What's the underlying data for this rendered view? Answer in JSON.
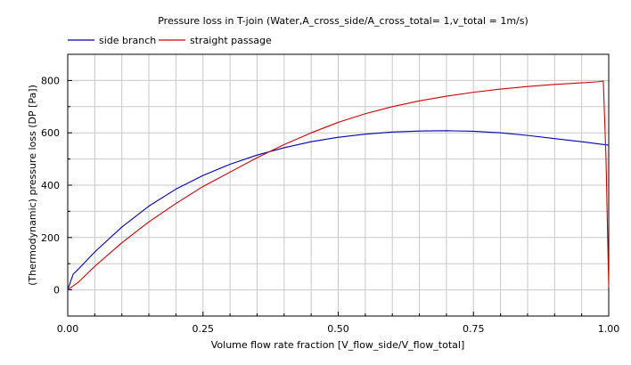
{
  "chart_data": {
    "type": "line",
    "title": "Pressure loss in T-join (Water,A_cross_side/A_cross_total= 1,v_total = 1m/s)",
    "xlabel": "Volume flow rate fraction [V_flow_side/V_flow_total]",
    "ylabel": "(Thermodynamic) pressure loss (DP [Pa])",
    "xlim": [
      0,
      1
    ],
    "ylim": [
      -100,
      900
    ],
    "x_ticks": [
      "0.00",
      "0.25",
      "0.50",
      "0.75",
      "1.00"
    ],
    "y_ticks": [
      "0",
      "200",
      "400",
      "600",
      "800"
    ],
    "grid": true,
    "legend_position": "top-left",
    "series": [
      {
        "name": "side branch",
        "color": "#0000b4",
        "points": [
          [
            0,
            0
          ],
          [
            0.005,
            30
          ],
          [
            0.01,
            60
          ],
          [
            0.02,
            80
          ],
          [
            0.05,
            145
          ],
          [
            0.1,
            240
          ],
          [
            0.15,
            320
          ],
          [
            0.2,
            385
          ],
          [
            0.25,
            437
          ],
          [
            0.3,
            480
          ],
          [
            0.35,
            515
          ],
          [
            0.4,
            543
          ],
          [
            0.45,
            566
          ],
          [
            0.5,
            583
          ],
          [
            0.55,
            595
          ],
          [
            0.6,
            603
          ],
          [
            0.65,
            607
          ],
          [
            0.7,
            608
          ],
          [
            0.75,
            606
          ],
          [
            0.8,
            600
          ],
          [
            0.85,
            590
          ],
          [
            0.9,
            578
          ],
          [
            0.95,
            566
          ],
          [
            1.0,
            553
          ]
        ]
      },
      {
        "name": "straight passage",
        "color": "#d20000",
        "points": [
          [
            0,
            0
          ],
          [
            0.02,
            30
          ],
          [
            0.05,
            90
          ],
          [
            0.1,
            180
          ],
          [
            0.15,
            260
          ],
          [
            0.2,
            330
          ],
          [
            0.25,
            395
          ],
          [
            0.3,
            450
          ],
          [
            0.35,
            505
          ],
          [
            0.4,
            555
          ],
          [
            0.45,
            600
          ],
          [
            0.5,
            640
          ],
          [
            0.55,
            673
          ],
          [
            0.6,
            700
          ],
          [
            0.65,
            722
          ],
          [
            0.7,
            740
          ],
          [
            0.75,
            755
          ],
          [
            0.8,
            767
          ],
          [
            0.85,
            777
          ],
          [
            0.9,
            785
          ],
          [
            0.95,
            791
          ],
          [
            0.98,
            795
          ],
          [
            0.99,
            798
          ],
          [
            0.995,
            500
          ],
          [
            1.0,
            10
          ]
        ]
      }
    ]
  }
}
